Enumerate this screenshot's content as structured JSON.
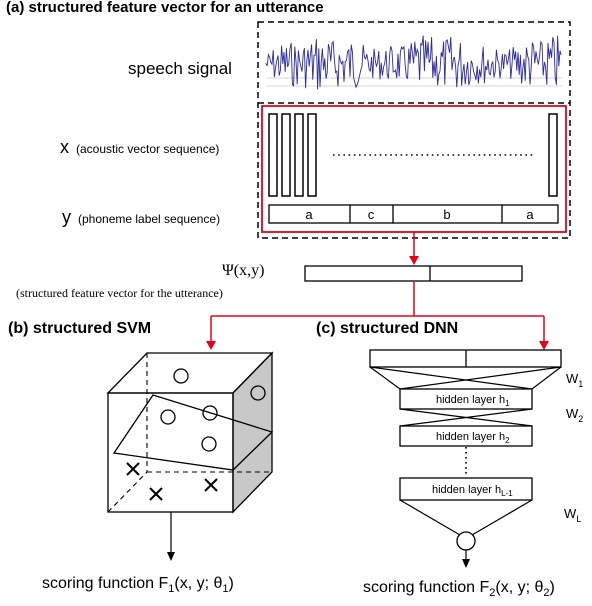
{
  "panel_a": {
    "title": "(a) structured feature vector for an utterance",
    "speech_label": "speech signal",
    "x_symbol": "x",
    "x_desc": "(acoustic vector sequence)",
    "y_symbol": "y",
    "y_desc": "(phoneme label sequence)",
    "phonemes": [
      "a",
      "c",
      "b",
      "a"
    ],
    "psi_label": "Ψ(x,y)",
    "psi_desc": "(structured feature vector for the utterance)"
  },
  "panel_b": {
    "title": "(b) structured SVM",
    "scoring": "scoring function F",
    "scoring_sub": "1",
    "scoring_args": "(x, y; θ",
    "scoring_theta_sub": "1",
    "scoring_close": ")"
  },
  "panel_c": {
    "title": "(c) structured DNN",
    "weight_base": "W",
    "weight_subs": [
      "1",
      "2",
      "L"
    ],
    "hidden_base": "hidden layer h",
    "hidden_subs": [
      "1",
      "2",
      "L-1"
    ],
    "scoring": "scoring function F",
    "scoring_sub": "2",
    "scoring_args": "(x, y; θ",
    "scoring_theta_sub": "2",
    "scoring_close": ")"
  },
  "colors": {
    "accent_red": "#e8001c",
    "signal_blue": "#2b2b9c",
    "cube_shade": "#c8c8c8",
    "ink": "#000000"
  }
}
